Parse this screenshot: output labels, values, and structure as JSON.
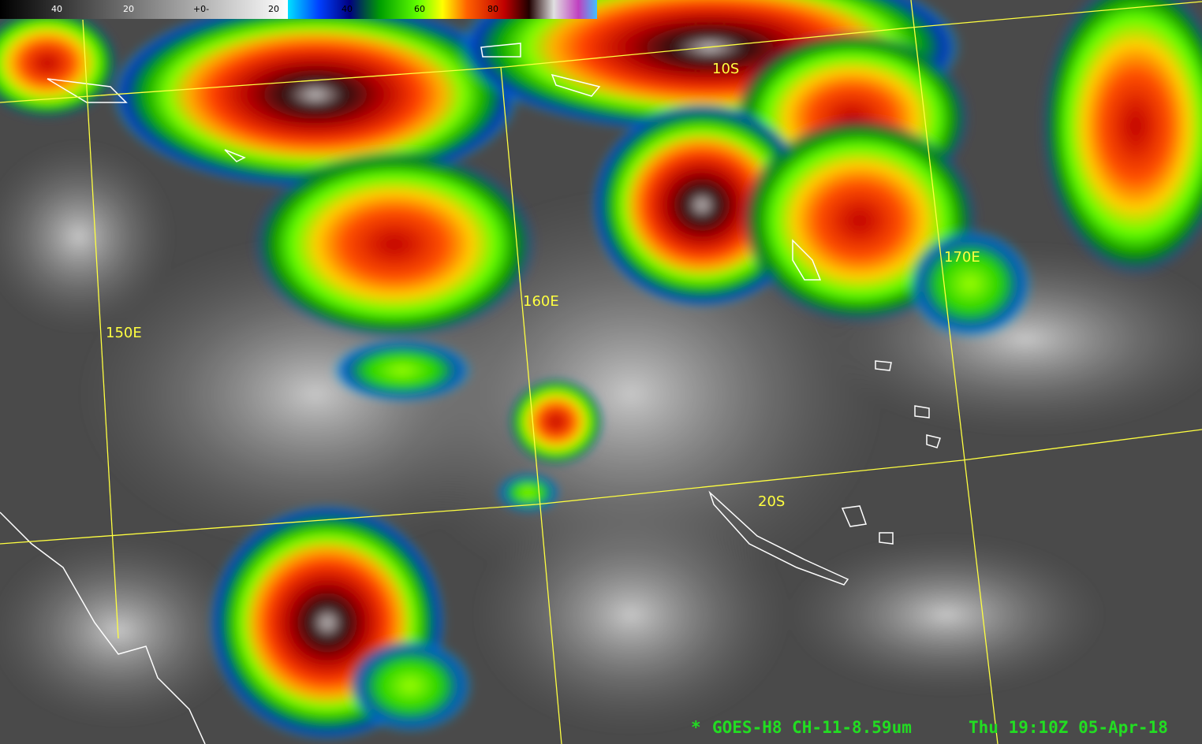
{
  "colorbar": {
    "labels": [
      "40",
      "20",
      "+0-",
      "20",
      "40",
      "60",
      "80"
    ]
  },
  "grid_labels": {
    "latitude": [
      "10S",
      "20S"
    ],
    "longitude": [
      "150E",
      "160E",
      "170E"
    ]
  },
  "footer": {
    "marker": "*",
    "satellite": "GOES-H8 CH-11-8.59um",
    "time": "Thu 19:10Z 05-Apr-18"
  }
}
